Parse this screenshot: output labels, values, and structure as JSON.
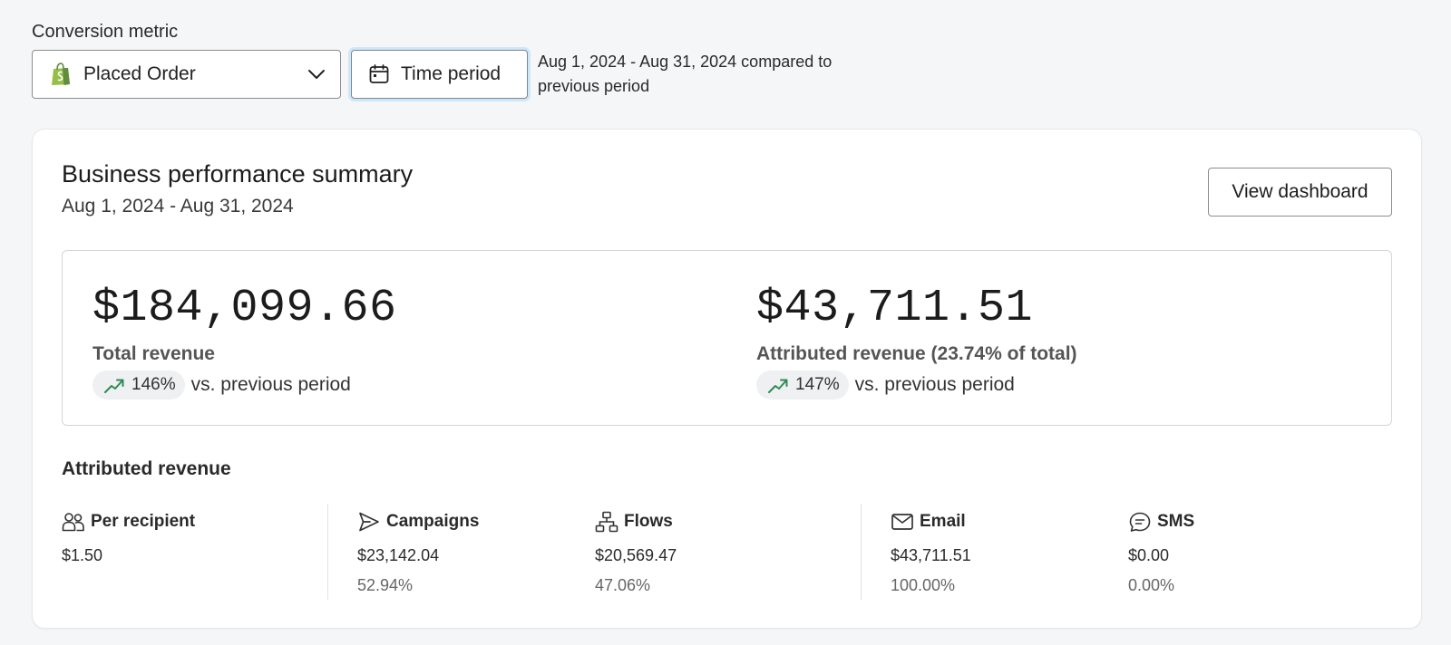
{
  "filters": {
    "conversion_metric_label": "Conversion metric",
    "metric_value": "Placed Order",
    "time_period_label": "Time period",
    "period_description": "Aug 1, 2024 - Aug 31, 2024 compared to previous period"
  },
  "summary": {
    "title": "Business performance summary",
    "date_range": "Aug 1, 2024 - Aug 31, 2024",
    "view_dashboard_label": "View dashboard",
    "total_revenue": {
      "value": "$184,099.66",
      "label": "Total revenue",
      "change": "146%",
      "comparison": "vs. previous period"
    },
    "attributed_revenue": {
      "value": "$43,711.51",
      "label": "Attributed revenue (23.74% of total)",
      "change": "147%",
      "comparison": "vs. previous period"
    }
  },
  "attributed": {
    "title": "Attributed revenue",
    "stats": [
      {
        "name": "Per recipient",
        "value": "$1.50",
        "percent": ""
      },
      {
        "name": "Campaigns",
        "value": "$23,142.04",
        "percent": "52.94%"
      },
      {
        "name": "Flows",
        "value": "$20,569.47",
        "percent": "47.06%"
      },
      {
        "name": "Email",
        "value": "$43,711.51",
        "percent": "100.00%"
      },
      {
        "name": "SMS",
        "value": "$0.00",
        "percent": "0.00%"
      }
    ]
  },
  "icons": [
    "shopify-bag-icon",
    "chevron-down-icon",
    "calendar-icon",
    "trend-up-icon",
    "people-icon",
    "send-icon",
    "flow-icon",
    "mail-icon",
    "chat-icon"
  ],
  "colors": {
    "trend_up": "#2e8b57",
    "shopify_green": "#5e8e3e",
    "focus_ring": "#cfe6f6"
  }
}
